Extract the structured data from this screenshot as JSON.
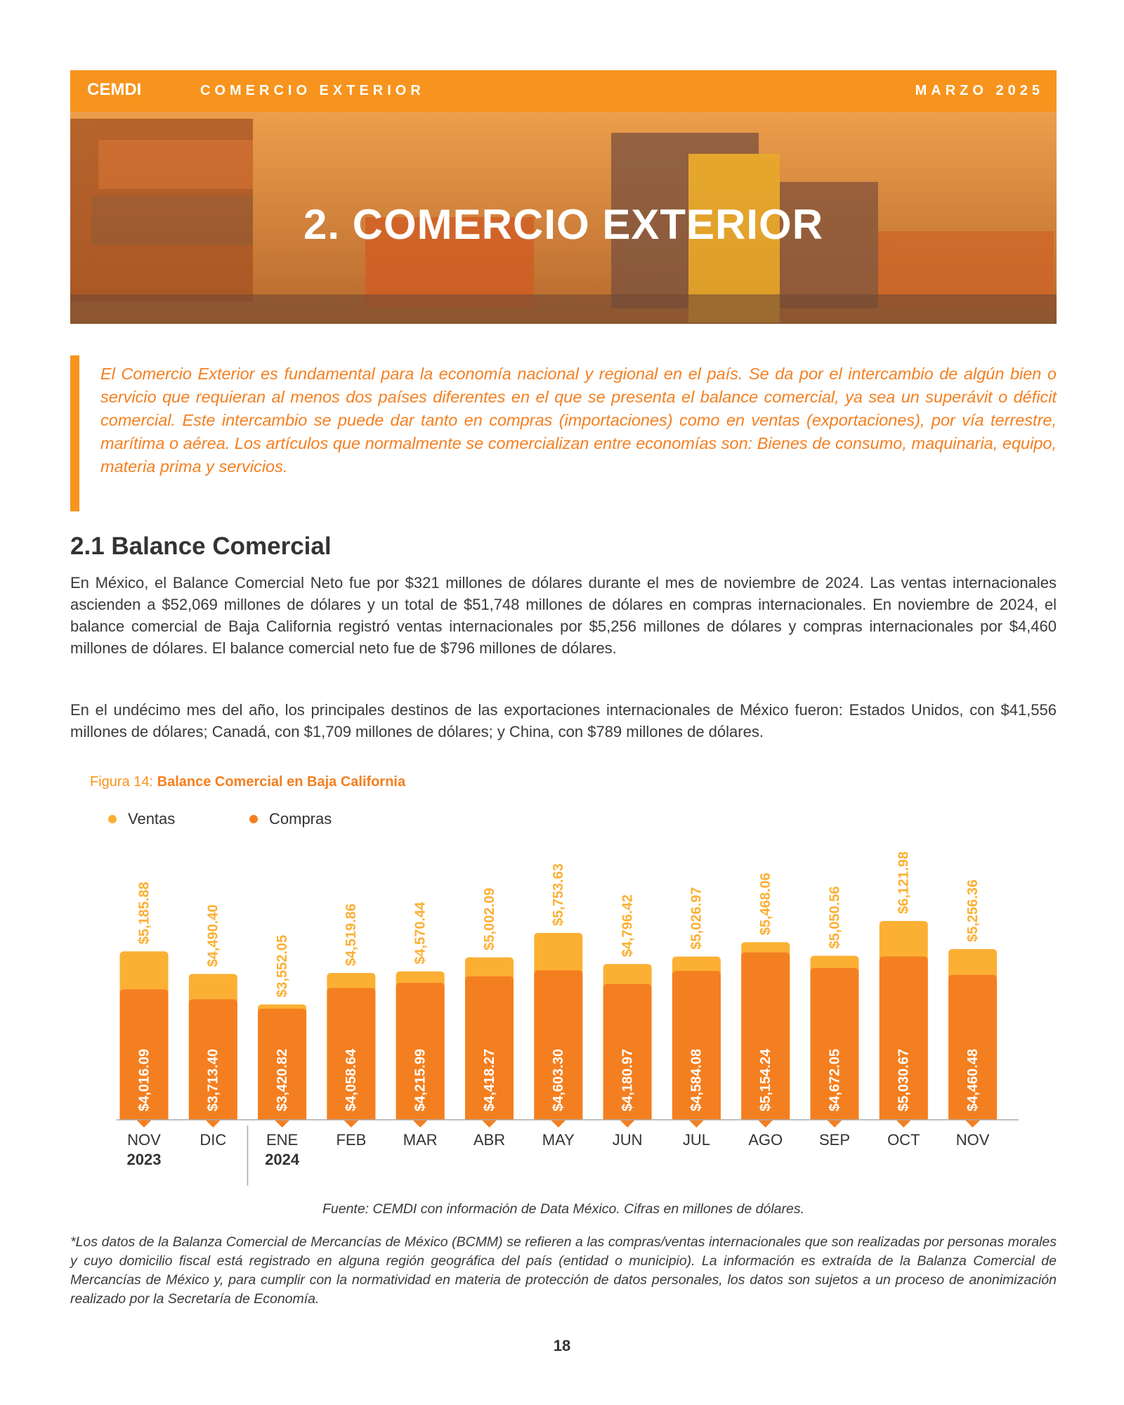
{
  "header": {
    "logo": "CEMDI",
    "section": "COMERCIO EXTERIOR",
    "date": "MARZO 2025"
  },
  "banner": {
    "title": "2. COMERCIO EXTERIOR"
  },
  "intro": "El Comercio Exterior es fundamental para la economía nacional y regional en el país. Se da por el intercambio de algún bien o servicio que requieran al menos dos países diferentes en el que se presenta el balance comercial, ya sea un superávit o déficit comercial. Este intercambio se puede dar tanto en compras (importaciones) como en ventas (exportaciones), por vía terrestre, marítima o aérea. Los artículos que normalmente se comercializan entre economías son: Bienes de consumo, maquinaria, equipo, materia prima y servicios.",
  "section": {
    "heading": "2.1 Balance Comercial",
    "paragraphs": [
      "En México, el Balance Comercial Neto fue por $321 millones de dólares durante el mes de noviembre de 2024. Las ventas internacionales ascienden a $52,069 millones de dólares y un total de $51,748 millones de dólares en compras internacionales. En noviembre de 2024, el balance comercial de Baja California registró ventas internacionales por $5,256 millones de dólares y compras internacionales por $4,460 millones de dólares. El balance comercial neto fue de $796 millones de dólares.",
      "En el undécimo mes del año, los principales destinos de las exportaciones internacionales de México fueron: Estados Unidos, con $41,556 millones de dólares; Canadá, con $1,709 millones de dólares; y China, con $789 millones de dólares."
    ]
  },
  "figure": {
    "label": "Figura 14:",
    "source": "Fuente: CEMDI con información de Data México. Cifras en millones de dólares.",
    "note": "*Los datos de la Balanza Comercial de Mercancías de México (BCMM) se refieren a las compras/ventas internacionales que son realizadas por personas morales y cuyo domicilio fiscal está registrado en alguna región geográfica del país (entidad o municipio). La información es extraída de la Balanza Comercial de Mercancías de México y, para cumplir con la normatividad en materia de protección de datos personales, los datos son sujetos a un proceso de anonimización realizado por la Secretaría de Economía."
  },
  "page_number": "18",
  "chart_data": {
    "type": "bar",
    "title": "Balance Comercial en Baja California",
    "categories": [
      "NOV",
      "DIC",
      "ENE",
      "FEB",
      "MAR",
      "ABR",
      "MAY",
      "JUN",
      "JUL",
      "AGO",
      "SEP",
      "OCT",
      "NOV"
    ],
    "category_years": [
      "2023",
      null,
      "2024",
      null,
      null,
      null,
      null,
      null,
      null,
      null,
      null,
      null,
      null
    ],
    "series": [
      {
        "name": "Ventas",
        "color": "#fbb034",
        "values": [
          5185.88,
          4490.4,
          3552.05,
          4519.86,
          4570.44,
          5002.09,
          5753.63,
          4796.42,
          5026.97,
          5468.06,
          5050.56,
          6121.98,
          5256.36
        ],
        "value_labels": [
          "$5,185.88",
          "$4,490.40",
          "$3,552.05",
          "$4,519.86",
          "$4,570.44",
          "$5,002.09",
          "$5,753.63",
          "$4,796.42",
          "$5,026.97",
          "$5,468.06",
          "$5,050.56",
          "$6,121.98",
          "$5,256.36"
        ]
      },
      {
        "name": "Compras",
        "color": "#f47f20",
        "values": [
          4016.09,
          3713.4,
          3420.82,
          4058.64,
          4215.99,
          4418.27,
          4603.3,
          4180.97,
          4584.08,
          5154.24,
          4672.05,
          5030.67,
          4460.48
        ],
        "value_labels": [
          "$4,016.09",
          "$3,713.40",
          "$3,420.82",
          "$4,058.64",
          "$4,215.99",
          "$4,418.27",
          "$4,603.30",
          "$4,180.97",
          "$4,584.08",
          "$5,154.24",
          "$4,672.05",
          "$5,030.67",
          "$4,460.48"
        ]
      }
    ]
  }
}
